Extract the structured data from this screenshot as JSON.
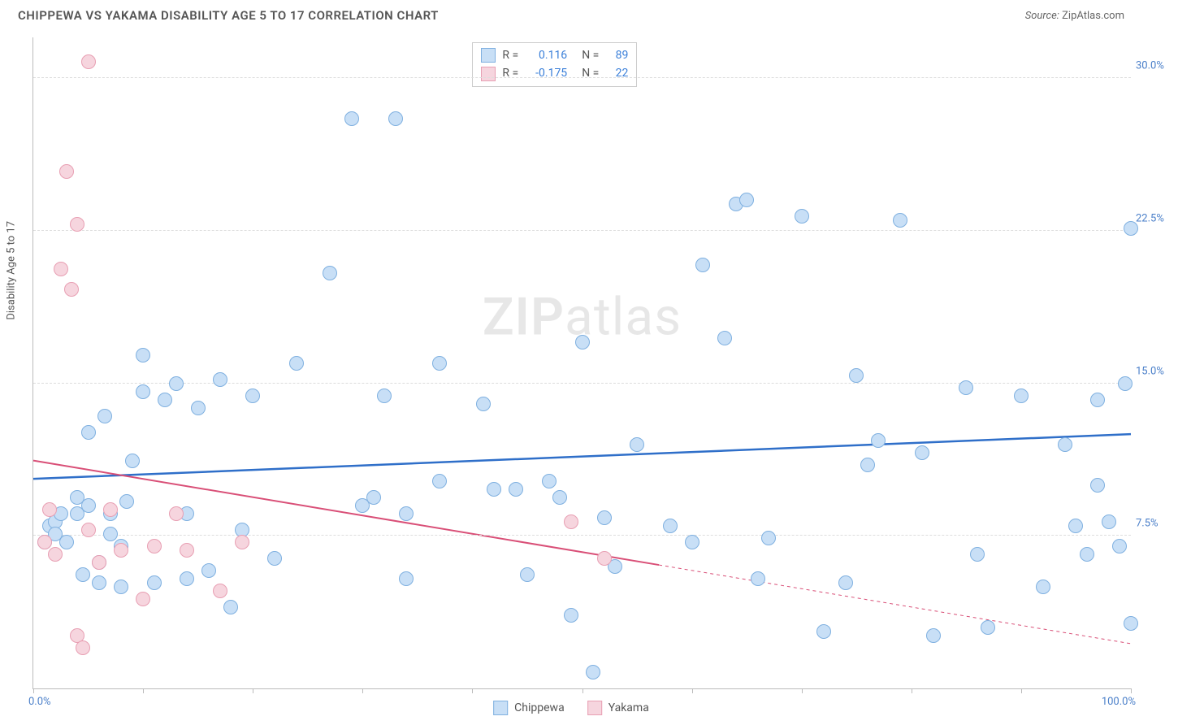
{
  "header": {
    "title": "CHIPPEWA VS YAKAMA DISABILITY AGE 5 TO 17 CORRELATION CHART",
    "source_label": "Source:",
    "source_value": "ZipAtlas.com"
  },
  "watermark": {
    "zip": "ZIP",
    "atlas": "atlas"
  },
  "chart": {
    "type": "scatter",
    "y_axis_label": "Disability Age 5 to 17",
    "xlim": [
      0,
      100
    ],
    "ylim": [
      0,
      32
    ],
    "x_ticks": [
      0,
      10,
      20,
      30,
      40,
      50,
      60,
      70,
      80,
      90,
      100
    ],
    "x_edge_labels": {
      "min": "0.0%",
      "max": "100.0%"
    },
    "y_gridlines": [
      7.5,
      15.0,
      22.5,
      30.0
    ],
    "y_tick_labels": [
      "7.5%",
      "15.0%",
      "22.5%",
      "30.0%"
    ],
    "grid_color": "#dddddd",
    "axis_color": "#bbbbbb",
    "background_color": "#ffffff",
    "marker_radius": 9,
    "marker_stroke_width": 1.5,
    "series": [
      {
        "name": "Chippewa",
        "fill": "#c8dff6",
        "stroke": "#7fb0e0",
        "r_value": "0.116",
        "n_value": "89",
        "trend": {
          "x1": 0,
          "y1": 10.3,
          "x2": 100,
          "y2": 12.5,
          "color": "#2f6fc9",
          "width": 2.5,
          "solid_to_x": 100
        },
        "points": [
          [
            1,
            7.2
          ],
          [
            1.5,
            8
          ],
          [
            2,
            8.2
          ],
          [
            2,
            7.6
          ],
          [
            2.5,
            8.6
          ],
          [
            3,
            7.2
          ],
          [
            4,
            9.4
          ],
          [
            4,
            8.6
          ],
          [
            4.5,
            5.6
          ],
          [
            5,
            9
          ],
          [
            5,
            12.6
          ],
          [
            6,
            5.2
          ],
          [
            6,
            6.2
          ],
          [
            6.5,
            13.4
          ],
          [
            7,
            7.6
          ],
          [
            7,
            8.6
          ],
          [
            8,
            5
          ],
          [
            8,
            7
          ],
          [
            8.5,
            9.2
          ],
          [
            9,
            11.2
          ],
          [
            10,
            14.6
          ],
          [
            10,
            16.4
          ],
          [
            11,
            5.2
          ],
          [
            12,
            14.2
          ],
          [
            13,
            15
          ],
          [
            14,
            5.4
          ],
          [
            14,
            8.6
          ],
          [
            15,
            13.8
          ],
          [
            16,
            5.8
          ],
          [
            17,
            15.2
          ],
          [
            18,
            4
          ],
          [
            19,
            7.8
          ],
          [
            20,
            14.4
          ],
          [
            22,
            6.4
          ],
          [
            24,
            16
          ],
          [
            27,
            20.4
          ],
          [
            29,
            28
          ],
          [
            30,
            9
          ],
          [
            31,
            9.4
          ],
          [
            32,
            14.4
          ],
          [
            33,
            28
          ],
          [
            34,
            8.6
          ],
          [
            34,
            5.4
          ],
          [
            37,
            16
          ],
          [
            37,
            10.2
          ],
          [
            41,
            14
          ],
          [
            42,
            9.8
          ],
          [
            44,
            9.8
          ],
          [
            45,
            5.6
          ],
          [
            47,
            10.2
          ],
          [
            48,
            9.4
          ],
          [
            49,
            3.6
          ],
          [
            50,
            17
          ],
          [
            51,
            0.8
          ],
          [
            52,
            8.4
          ],
          [
            53,
            6
          ],
          [
            55,
            12
          ],
          [
            58,
            8
          ],
          [
            60,
            7.2
          ],
          [
            61,
            20.8
          ],
          [
            63,
            17.2
          ],
          [
            64,
            23.8
          ],
          [
            65,
            24
          ],
          [
            66,
            5.4
          ],
          [
            67,
            7.4
          ],
          [
            70,
            23.2
          ],
          [
            72,
            2.8
          ],
          [
            74,
            5.2
          ],
          [
            75,
            15.4
          ],
          [
            76,
            11
          ],
          [
            77,
            12.2
          ],
          [
            79,
            23
          ],
          [
            81,
            11.6
          ],
          [
            82,
            2.6
          ],
          [
            85,
            14.8
          ],
          [
            86,
            6.6
          ],
          [
            87,
            3
          ],
          [
            90,
            14.4
          ],
          [
            92,
            5
          ],
          [
            94,
            12
          ],
          [
            95,
            8
          ],
          [
            96,
            6.6
          ],
          [
            97,
            10
          ],
          [
            97,
            14.2
          ],
          [
            98,
            8.2
          ],
          [
            99,
            7
          ],
          [
            99.5,
            15
          ],
          [
            100,
            22.6
          ],
          [
            100,
            3.2
          ]
        ]
      },
      {
        "name": "Yakama",
        "fill": "#f6d5de",
        "stroke": "#e89fb3",
        "r_value": "-0.175",
        "n_value": "22",
        "trend": {
          "x1": 0,
          "y1": 11.2,
          "x2": 100,
          "y2": 2.2,
          "color": "#d94f77",
          "width": 2,
          "solid_to_x": 57
        },
        "points": [
          [
            1,
            7.2
          ],
          [
            1.5,
            8.8
          ],
          [
            2,
            6.6
          ],
          [
            2.5,
            20.6
          ],
          [
            3,
            25.4
          ],
          [
            3.5,
            19.6
          ],
          [
            4,
            22.8
          ],
          [
            5,
            30.8
          ],
          [
            4,
            2.6
          ],
          [
            4.5,
            2
          ],
          [
            5,
            7.8
          ],
          [
            6,
            6.2
          ],
          [
            7,
            8.8
          ],
          [
            8,
            6.8
          ],
          [
            10,
            4.4
          ],
          [
            11,
            7
          ],
          [
            13,
            8.6
          ],
          [
            14,
            6.8
          ],
          [
            17,
            4.8
          ],
          [
            19,
            7.2
          ],
          [
            49,
            8.2
          ],
          [
            52,
            6.4
          ]
        ]
      }
    ]
  },
  "legend_top": {
    "rows": [
      {
        "r_label": "R =",
        "n_label": "N ="
      },
      {
        "r_label": "R =",
        "n_label": "N ="
      }
    ]
  },
  "legend_bottom": {
    "items": [
      "Chippewa",
      "Yakama"
    ]
  }
}
